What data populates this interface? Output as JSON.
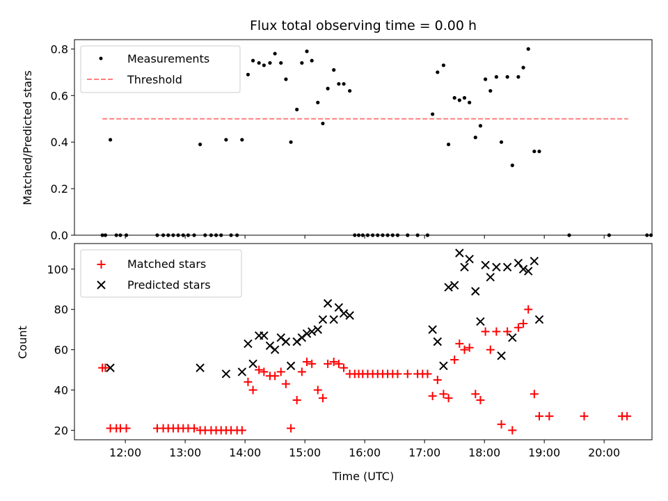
{
  "chart_data": [
    {
      "type": "scatter",
      "title": "Flux total observing time = 0.00 h",
      "xlabel": "",
      "ylabel": "Matched/Predicted stars",
      "x_axis": "time",
      "xlim": [
        "11:09",
        "20:48"
      ],
      "ylim": [
        0,
        0.84
      ],
      "yticks": [
        0.0,
        0.2,
        0.4,
        0.6,
        0.8
      ],
      "ytick_labels": [
        "0.0",
        "0.2",
        "0.4",
        "0.6",
        "0.8"
      ],
      "legend": "top-left",
      "series": [
        {
          "name": "Measurements",
          "kind": "points",
          "color": "#000000",
          "points": [
            [
              "11:37",
              0
            ],
            [
              "11:40",
              0
            ],
            [
              "11:45",
              0.41
            ],
            [
              "11:51",
              0
            ],
            [
              "11:55",
              0
            ],
            [
              "12:01",
              0
            ],
            [
              "12:32",
              0
            ],
            [
              "12:38",
              0
            ],
            [
              "12:43",
              0
            ],
            [
              "12:48",
              0
            ],
            [
              "12:53",
              0
            ],
            [
              "12:58",
              0
            ],
            [
              "13:03",
              0
            ],
            [
              "13:09",
              0
            ],
            [
              "13:15",
              0.39
            ],
            [
              "13:20",
              0
            ],
            [
              "13:26",
              0
            ],
            [
              "13:31",
              0
            ],
            [
              "13:36",
              0
            ],
            [
              "13:41",
              0.41
            ],
            [
              "13:46",
              0
            ],
            [
              "13:52",
              0
            ],
            [
              "13:57",
              0.41
            ],
            [
              "14:03",
              0.69
            ],
            [
              "14:08",
              0.75
            ],
            [
              "14:14",
              0.74
            ],
            [
              "14:19",
              0.73
            ],
            [
              "14:25",
              0.74
            ],
            [
              "14:30",
              0.78
            ],
            [
              "14:36",
              0.74
            ],
            [
              "14:41",
              0.67
            ],
            [
              "14:46",
              0.4
            ],
            [
              "14:52",
              0.54
            ],
            [
              "14:57",
              0.74
            ],
            [
              "15:02",
              0.79
            ],
            [
              "15:07",
              0.75
            ],
            [
              "15:13",
              0.57
            ],
            [
              "15:18",
              0.48
            ],
            [
              "15:23",
              0.63
            ],
            [
              "15:29",
              0.71
            ],
            [
              "15:34",
              0.65
            ],
            [
              "15:39",
              0.65
            ],
            [
              "15:45",
              0.62
            ],
            [
              "15:50",
              0
            ],
            [
              "15:54",
              0
            ],
            [
              "15:58",
              0
            ],
            [
              "16:03",
              0
            ],
            [
              "16:08",
              0
            ],
            [
              "16:13",
              0
            ],
            [
              "16:18",
              0
            ],
            [
              "16:23",
              0
            ],
            [
              "16:28",
              0
            ],
            [
              "16:33",
              0
            ],
            [
              "16:43",
              0
            ],
            [
              "16:53",
              0
            ],
            [
              "17:03",
              0
            ],
            [
              "17:08",
              0.52
            ],
            [
              "17:13",
              0.7
            ],
            [
              "17:19",
              0.73
            ],
            [
              "17:24",
              0.39
            ],
            [
              "17:30",
              0.59
            ],
            [
              "17:35",
              0.58
            ],
            [
              "17:40",
              0.59
            ],
            [
              "17:45",
              0.57
            ],
            [
              "17:51",
              0.42
            ],
            [
              "17:56",
              0.47
            ],
            [
              "18:01",
              0.67
            ],
            [
              "18:06",
              0.62
            ],
            [
              "18:12",
              0.68
            ],
            [
              "18:17",
              0.4
            ],
            [
              "18:23",
              0.68
            ],
            [
              "18:28",
              0.3
            ],
            [
              "18:34",
              0.68
            ],
            [
              "18:39",
              0.72
            ],
            [
              "18:44",
              0.8
            ],
            [
              "18:50",
              0.36
            ],
            [
              "18:55",
              0.36
            ],
            [
              "19:25",
              0
            ],
            [
              "20:05",
              0
            ],
            [
              "20:43",
              0
            ],
            [
              "20:47",
              0
            ]
          ]
        },
        {
          "name": "Threshold",
          "kind": "dashed-line",
          "color": "#ff7f7f",
          "x": [
            "11:37",
            "20:24"
          ],
          "y": [
            0.5,
            0.5
          ]
        }
      ]
    },
    {
      "type": "scatter",
      "title": "",
      "xlabel": "Time (UTC)",
      "ylabel": "Count",
      "x_axis": "time",
      "xlim": [
        "11:09",
        "20:48"
      ],
      "ylim": [
        15.3,
        112.7
      ],
      "xticks": [
        "12:00",
        "13:00",
        "14:00",
        "15:00",
        "16:00",
        "17:00",
        "18:00",
        "19:00",
        "20:00"
      ],
      "yticks": [
        20,
        40,
        60,
        80,
        100
      ],
      "ytick_labels": [
        "20",
        "40",
        "60",
        "80",
        "100"
      ],
      "legend": "top-left",
      "series": [
        {
          "name": "Matched stars",
          "marker": "+",
          "color": "#ff0000",
          "points": [
            [
              "11:37",
              51
            ],
            [
              "11:40",
              51
            ],
            [
              "11:45",
              21
            ],
            [
              "11:51",
              21
            ],
            [
              "11:55",
              21
            ],
            [
              "12:01",
              21
            ],
            [
              "12:32",
              21
            ],
            [
              "12:38",
              21
            ],
            [
              "12:43",
              21
            ],
            [
              "12:48",
              21
            ],
            [
              "12:53",
              21
            ],
            [
              "12:58",
              21
            ],
            [
              "13:03",
              21
            ],
            [
              "13:09",
              21
            ],
            [
              "13:15",
              20
            ],
            [
              "13:20",
              20
            ],
            [
              "13:26",
              20
            ],
            [
              "13:31",
              20
            ],
            [
              "13:36",
              20
            ],
            [
              "13:41",
              20
            ],
            [
              "13:46",
              20
            ],
            [
              "13:52",
              20
            ],
            [
              "13:57",
              20
            ],
            [
              "14:03",
              44
            ],
            [
              "14:08",
              40
            ],
            [
              "14:14",
              50
            ],
            [
              "14:19",
              49
            ],
            [
              "14:25",
              47
            ],
            [
              "14:30",
              47
            ],
            [
              "14:36",
              49
            ],
            [
              "14:41",
              43
            ],
            [
              "14:46",
              21
            ],
            [
              "14:52",
              35
            ],
            [
              "14:57",
              49
            ],
            [
              "15:02",
              54
            ],
            [
              "15:07",
              53
            ],
            [
              "15:13",
              40
            ],
            [
              "15:18",
              36
            ],
            [
              "15:23",
              53
            ],
            [
              "15:29",
              54
            ],
            [
              "15:34",
              53
            ],
            [
              "15:39",
              51
            ],
            [
              "15:45",
              48
            ],
            [
              "15:50",
              48
            ],
            [
              "15:54",
              48
            ],
            [
              "15:58",
              48
            ],
            [
              "16:03",
              48
            ],
            [
              "16:08",
              48
            ],
            [
              "16:13",
              48
            ],
            [
              "16:18",
              48
            ],
            [
              "16:23",
              48
            ],
            [
              "16:28",
              48
            ],
            [
              "16:33",
              48
            ],
            [
              "16:43",
              48
            ],
            [
              "16:53",
              48
            ],
            [
              "16:58",
              48
            ],
            [
              "17:03",
              48
            ],
            [
              "17:08",
              37
            ],
            [
              "17:13",
              45
            ],
            [
              "17:19",
              38
            ],
            [
              "17:24",
              36
            ],
            [
              "17:30",
              55
            ],
            [
              "17:35",
              63
            ],
            [
              "17:40",
              60
            ],
            [
              "17:45",
              61
            ],
            [
              "17:51",
              38
            ],
            [
              "17:56",
              35
            ],
            [
              "18:01",
              69
            ],
            [
              "18:06",
              60
            ],
            [
              "18:12",
              69
            ],
            [
              "18:17",
              23
            ],
            [
              "18:23",
              69
            ],
            [
              "18:28",
              20
            ],
            [
              "18:34",
              71
            ],
            [
              "18:39",
              73
            ],
            [
              "18:44",
              80
            ],
            [
              "18:50",
              38
            ],
            [
              "18:55",
              27
            ],
            [
              "19:05",
              27
            ],
            [
              "19:40",
              27
            ],
            [
              "20:18",
              27
            ],
            [
              "20:23",
              27
            ]
          ]
        },
        {
          "name": "Predicted stars",
          "marker": "x",
          "color": "#000000",
          "points": [
            [
              "11:45",
              51
            ],
            [
              "13:15",
              51
            ],
            [
              "13:41",
              48
            ],
            [
              "13:57",
              49
            ],
            [
              "14:03",
              63
            ],
            [
              "14:08",
              53
            ],
            [
              "14:14",
              67
            ],
            [
              "14:19",
              67
            ],
            [
              "14:25",
              62
            ],
            [
              "14:30",
              60
            ],
            [
              "14:36",
              66
            ],
            [
              "14:41",
              64
            ],
            [
              "14:46",
              52
            ],
            [
              "14:52",
              64
            ],
            [
              "14:57",
              66
            ],
            [
              "15:02",
              68
            ],
            [
              "15:07",
              69
            ],
            [
              "15:13",
              70
            ],
            [
              "15:18",
              75
            ],
            [
              "15:23",
              83
            ],
            [
              "15:29",
              75
            ],
            [
              "15:34",
              81
            ],
            [
              "15:39",
              78
            ],
            [
              "15:45",
              77
            ],
            [
              "17:08",
              70
            ],
            [
              "17:13",
              64
            ],
            [
              "17:19",
              52
            ],
            [
              "17:24",
              91
            ],
            [
              "17:30",
              92
            ],
            [
              "17:35",
              108
            ],
            [
              "17:40",
              101
            ],
            [
              "17:45",
              105
            ],
            [
              "17:51",
              89
            ],
            [
              "17:56",
              74
            ],
            [
              "18:01",
              102
            ],
            [
              "18:06",
              96
            ],
            [
              "18:12",
              101
            ],
            [
              "18:17",
              57
            ],
            [
              "18:23",
              101
            ],
            [
              "18:28",
              66
            ],
            [
              "18:34",
              103
            ],
            [
              "18:39",
              100
            ],
            [
              "18:44",
              99
            ],
            [
              "18:50",
              104
            ],
            [
              "18:55",
              75
            ]
          ]
        }
      ]
    }
  ]
}
